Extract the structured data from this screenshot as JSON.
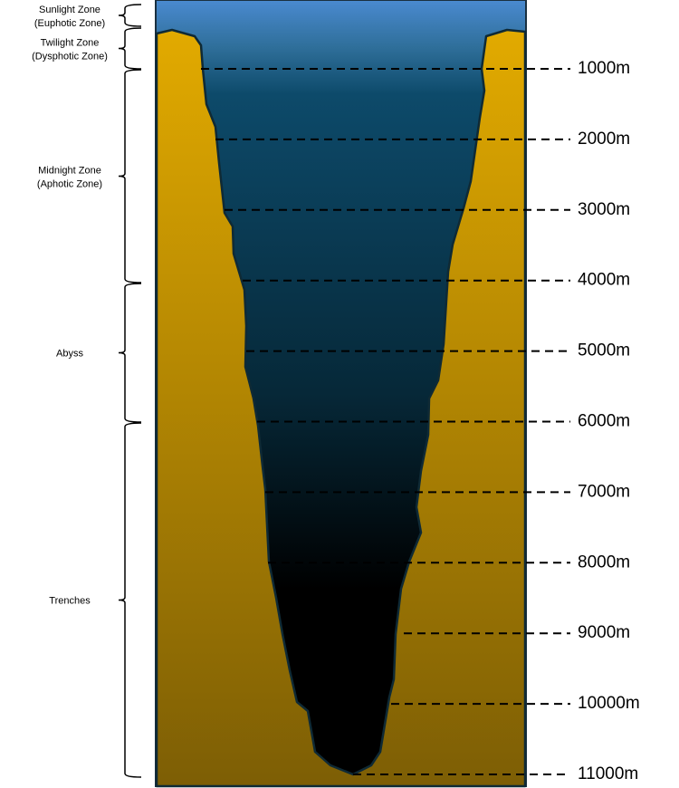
{
  "zones": [
    {
      "name": "Sunlight Zone",
      "subtitle": "(Euphotic Zone)"
    },
    {
      "name": "Twilight Zone",
      "subtitle": "(Dysphotic Zone)"
    },
    {
      "name": "Midnight Zone",
      "subtitle": "(Aphotic Zone)"
    },
    {
      "name": "Abyss"
    },
    {
      "name": "Trenches"
    }
  ],
  "depths": [
    "1000m",
    "2000m",
    "3000m",
    "4000m",
    "5000m",
    "6000m",
    "7000m",
    "8000m",
    "9000m",
    "10000m",
    "11000m"
  ]
}
